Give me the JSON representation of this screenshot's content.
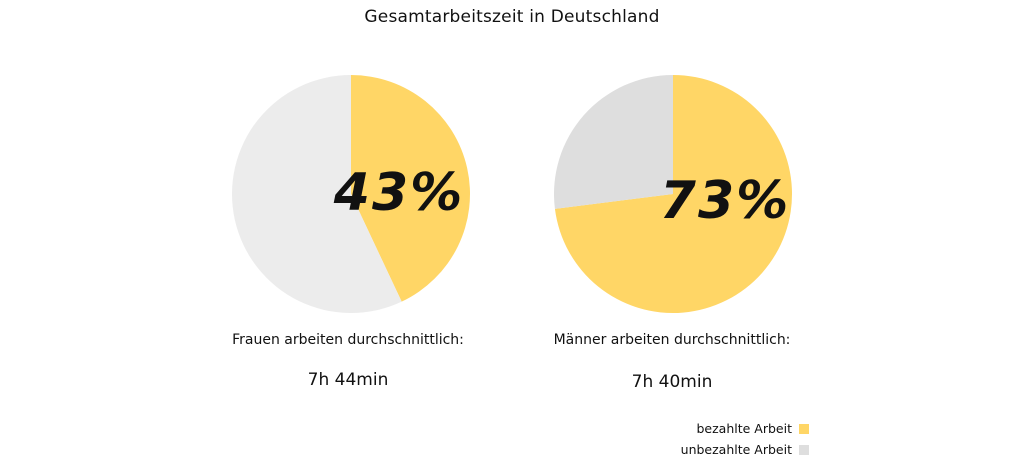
{
  "chart_data": {
    "type": "pie",
    "title": "Gesamtarbeitszeit in Deutschland",
    "legend": {
      "placement": "bottom-right",
      "items": [
        {
          "label": "bezahlte Arbeit",
          "color": "#FFD666"
        },
        {
          "label": "unbezahlte Arbeit",
          "color": "#DEDEDE"
        }
      ]
    },
    "pies": [
      {
        "caption": "Frauen arbeiten durchschnittlich:",
        "time": "7h 44min",
        "label": "43%",
        "slices": [
          {
            "name": "bezahlte Arbeit",
            "value": 43,
            "color": "#FFD666"
          },
          {
            "name": "unbezahlte Arbeit",
            "value": 57,
            "color": "#ECECEC"
          }
        ]
      },
      {
        "caption": "Männer arbeiten durchschnittlich:",
        "time": "7h 40min",
        "label": "73%",
        "slices": [
          {
            "name": "bezahlte Arbeit",
            "value": 73,
            "color": "#FFD666"
          },
          {
            "name": "unbezahlte Arbeit",
            "value": 27,
            "color": "#DEDEDE"
          }
        ]
      }
    ]
  }
}
